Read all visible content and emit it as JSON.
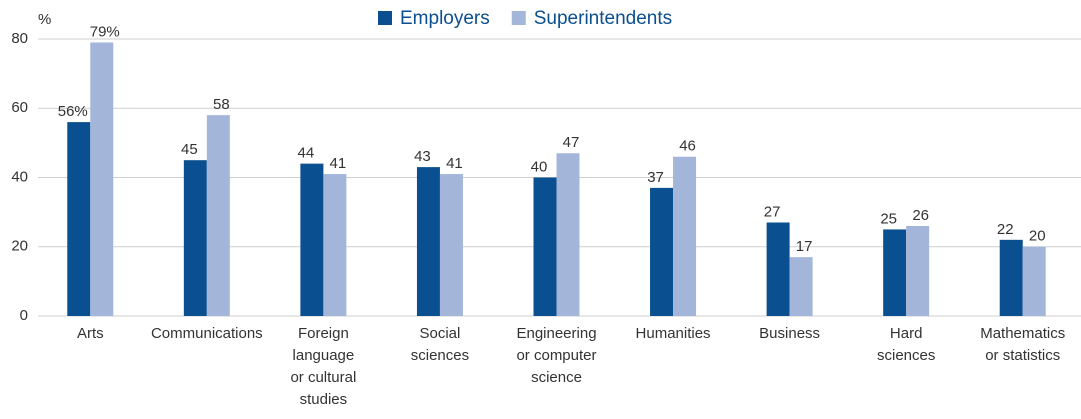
{
  "chart_data": {
    "type": "bar",
    "y_unit_label": "%",
    "categories": [
      "Arts",
      "Communications",
      "Foreign\nlanguage\nor cultural\nstudies",
      "Social\nsciences",
      "Engineering\nor computer\nscience",
      "Humanities",
      "Business",
      "Hard\nsciences",
      "Mathematics\nor statistics"
    ],
    "series": [
      {
        "name": "Employers",
        "color": "#0a4f8f",
        "values": [
          56,
          45,
          44,
          43,
          40,
          37,
          27,
          25,
          22
        ],
        "value_labels": [
          "56%",
          "45",
          "44",
          "43",
          "40",
          "37",
          "27",
          "25",
          "22"
        ]
      },
      {
        "name": "Superintendents",
        "color": "#a3b6da",
        "values": [
          79,
          58,
          41,
          41,
          47,
          46,
          17,
          26,
          20
        ],
        "value_labels": [
          "79%",
          "58",
          "41",
          "41",
          "47",
          "46",
          "17",
          "26",
          "20"
        ]
      }
    ],
    "ylim": [
      0,
      80
    ],
    "yticks": [
      0,
      20,
      40,
      60,
      80
    ],
    "grid": true,
    "legend": "top"
  }
}
